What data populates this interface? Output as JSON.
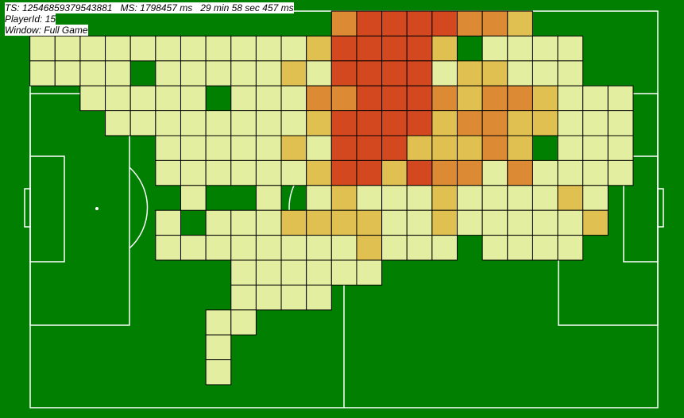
{
  "info": {
    "ts_label": "TS: 12546859379543881",
    "ms_label": "MS: 1798457 ms",
    "time_label": "29 min 58 sec 457 ms",
    "player_label": "PlayerId: 15",
    "window_label": "Window: Full Game"
  },
  "colors": {
    "pitch": "#007f00",
    "lines": "#ffffff",
    "cell_border": "#000000",
    "intensity_1": "#e4eea0",
    "intensity_2": "#e0c050",
    "intensity_3": "#dc8a34",
    "intensity_4": "#d44820"
  },
  "heatmap": {
    "columns": 25,
    "rows": 16,
    "rows_data": [
      "0000000000000344443320000",
      "0111111111112444420111100",
      "0111101111121444412211100",
      "0001111101113344432332111",
      "0000111111112444423322111",
      "0000001111121444222320111",
      "0000001111112442433131111",
      "0000000100101211121111210",
      "0000001011122221121111120",
      "0000001111111121110111100",
      "0000000001111110000000000",
      "0000000001111000000000000",
      "0000000011000000000000000",
      "0000000010000000000000000",
      "0000000010000000000000000",
      "0000000000000000000000000"
    ]
  }
}
